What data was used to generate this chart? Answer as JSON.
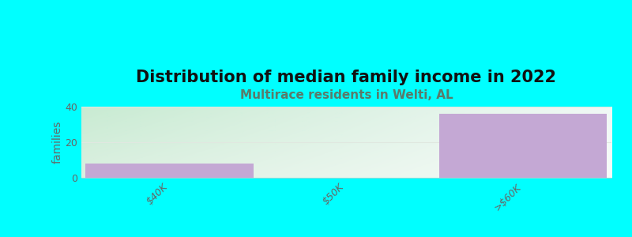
{
  "title": "Distribution of median family income in 2022",
  "subtitle": "Multirace residents in Welti, AL",
  "categories": [
    "$40K",
    "$50K",
    ">$60K"
  ],
  "values": [
    8,
    0,
    36
  ],
  "bar_color": "#c4a8d4",
  "background_color": "#00FFFF",
  "ylabel": "families",
  "ylim": [
    0,
    40
  ],
  "yticks": [
    0,
    20,
    40
  ],
  "title_fontsize": 15,
  "subtitle_fontsize": 11,
  "subtitle_color": "#5a7a6a",
  "bar_width": 0.95,
  "grid_color": "#e0e8e0",
  "tick_label_color": "#666666",
  "grad_topleft": [
    200,
    235,
    210
  ],
  "grad_topright": [
    240,
    248,
    245
  ],
  "grad_bottomleft": [
    220,
    240,
    225
  ],
  "grad_bottomright": [
    248,
    252,
    250
  ]
}
